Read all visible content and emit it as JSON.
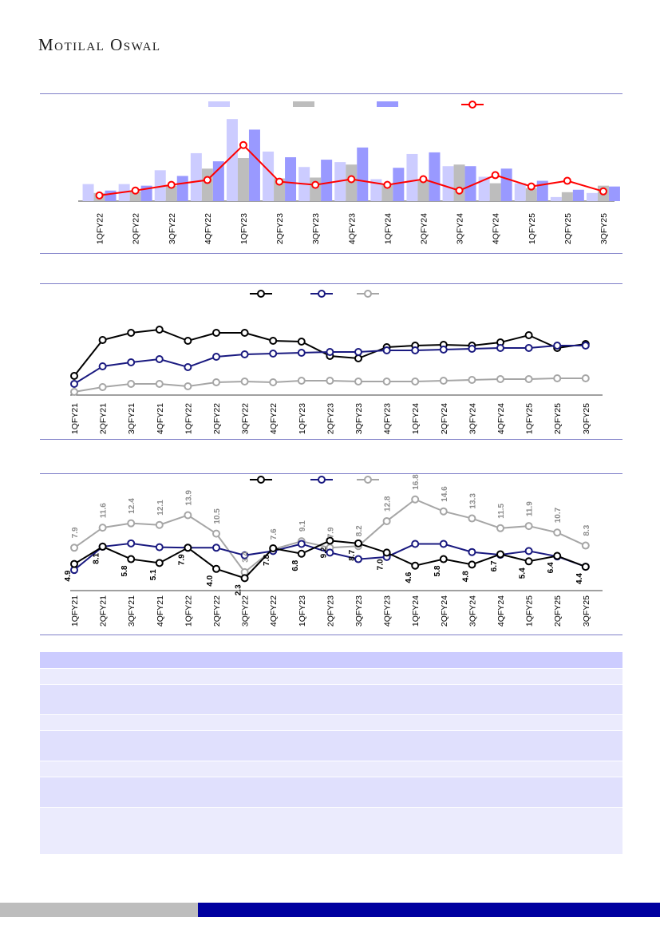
{
  "header": {
    "logo_text": "Motilal Oswal"
  },
  "colors": {
    "rule": "#7f7fc8",
    "bar_light": "#ccccff",
    "bar_grey": "#bdbdbd",
    "bar_blue": "#9999ff",
    "line_red": "#ff0000",
    "line_black": "#000000",
    "line_navy": "#1a1a80",
    "line_grey": "#a6a6a6",
    "table_header": "#ccccff",
    "table_row_a": "#ebebfd",
    "table_row_b": "#e0e0fd",
    "footer_grey": "#bdbdbd",
    "footer_blue": "#0000a0"
  },
  "chart_data": [
    {
      "type": "bar",
      "categories": [
        "1QFY22",
        "2QFY22",
        "3QFY22",
        "4QFY22",
        "1QFY23",
        "2QFY23",
        "3QFY23",
        "4QFY23",
        "1QFY24",
        "2QFY24",
        "3QFY24",
        "4QFY24",
        "1QFY25",
        "2QFY25",
        "3QFY25"
      ],
      "series": [
        {
          "kind": "bar",
          "color": "#ccccff",
          "values": [
            21,
            21,
            38,
            59,
            101,
            61,
            42,
            48,
            27,
            58,
            43,
            30,
            22,
            5,
            10
          ]
        },
        {
          "kind": "bar",
          "color": "#bdbdbd",
          "values": [
            10,
            12,
            19,
            40,
            53,
            28,
            29,
            45,
            20,
            25,
            45,
            22,
            16,
            11,
            19
          ]
        },
        {
          "kind": "bar",
          "color": "#9999ff",
          "values": [
            13,
            19,
            31,
            49,
            88,
            54,
            51,
            66,
            41,
            60,
            43,
            40,
            25,
            14,
            18
          ]
        },
        {
          "kind": "line",
          "color": "#ff0000",
          "values": [
            7,
            13,
            20,
            26,
            69,
            24,
            20,
            27,
            20,
            27,
            13,
            32,
            18,
            25,
            12
          ]
        }
      ],
      "ylim": [
        0,
        110
      ],
      "legend": "top"
    },
    {
      "type": "line",
      "x": [
        "1QFY21",
        "2QFY21",
        "3QFY21",
        "4QFY21",
        "1QFY22",
        "2QFY22",
        "3QFY22",
        "4QFY22",
        "1QFY23",
        "2QFY23",
        "3QFY23",
        "4QFY23",
        "1QFY24",
        "2QFY24",
        "3QFY24",
        "4QFY24",
        "1QFY25",
        "2QFY25",
        "3QFY25"
      ],
      "series": [
        {
          "color": "#000000",
          "values": [
            24,
            69,
            78,
            82,
            68,
            78,
            78,
            68,
            67,
            49,
            46,
            60,
            62,
            63,
            62,
            66,
            75,
            59,
            64
          ]
        },
        {
          "color": "#1a1a80",
          "values": [
            14,
            36,
            41,
            45,
            35,
            48,
            51,
            52,
            53,
            54,
            54,
            56,
            56,
            57,
            58,
            59,
            59,
            62,
            62
          ]
        },
        {
          "color": "#a6a6a6",
          "values": [
            4,
            10,
            14,
            14,
            11,
            16,
            17,
            16,
            18,
            18,
            17,
            17,
            17,
            18,
            19,
            20,
            20,
            21,
            21
          ]
        }
      ],
      "ylim": [
        0,
        100
      ],
      "legend": "top"
    },
    {
      "type": "line",
      "x": [
        "1QFY21",
        "2QFY21",
        "3QFY21",
        "4QFY21",
        "1QFY22",
        "2QFY22",
        "3QFY22",
        "4QFY22",
        "1QFY23",
        "2QFY23",
        "3QFY23",
        "4QFY23",
        "1QFY24",
        "2QFY24",
        "3QFY24",
        "4QFY24",
        "1QFY25",
        "2QFY25",
        "3QFY25"
      ],
      "series": [
        {
          "color": "#000000",
          "values": [
            4.9,
            8.1,
            5.8,
            5.1,
            7.9,
            4.0,
            2.3,
            7.8,
            6.8,
            9.2,
            8.7,
            7.0,
            4.6,
            5.8,
            4.8,
            6.7,
            5.4,
            6.4,
            4.4
          ]
        },
        {
          "color": "#1a1a80",
          "values": [
            3.8,
            8.1,
            8.7,
            8.0,
            7.9,
            7.9,
            6.5,
            7.3,
            8.6,
            7.0,
            5.8,
            6.2,
            8.6,
            8.6,
            7.1,
            6.6,
            7.3,
            6.3,
            4.4
          ]
        },
        {
          "color": "#a6a6a6",
          "values": [
            7.9,
            11.6,
            12.4,
            12.1,
            13.9,
            10.5,
            3.4,
            7.6,
            9.1,
            7.9,
            8.2,
            12.8,
            16.8,
            14.6,
            13.3,
            11.5,
            11.9,
            10.7,
            8.3
          ]
        }
      ],
      "data_labels": {
        "black": [
          "4.9",
          "8.1",
          "5.8",
          "5.1",
          "7.9",
          "4.0",
          "2.3",
          "7.8",
          "6.8",
          "9.2",
          "8.7",
          "7.0",
          "4.6",
          "5.8",
          "4.8",
          "6.7",
          "5.4",
          "6.4",
          "4.4"
        ],
        "grey": [
          "7.9",
          "11.6",
          "12.4",
          "12.1",
          "13.9",
          "10.5",
          "3.4",
          "7.6",
          "9.1",
          "7.9",
          "8.2",
          "12.8",
          "16.8",
          "14.6",
          "13.3",
          "11.5",
          "11.9",
          "10.7",
          "8.3"
        ]
      },
      "ylim": [
        0,
        20
      ],
      "legend": "top"
    }
  ],
  "table": {
    "rows": 7
  }
}
